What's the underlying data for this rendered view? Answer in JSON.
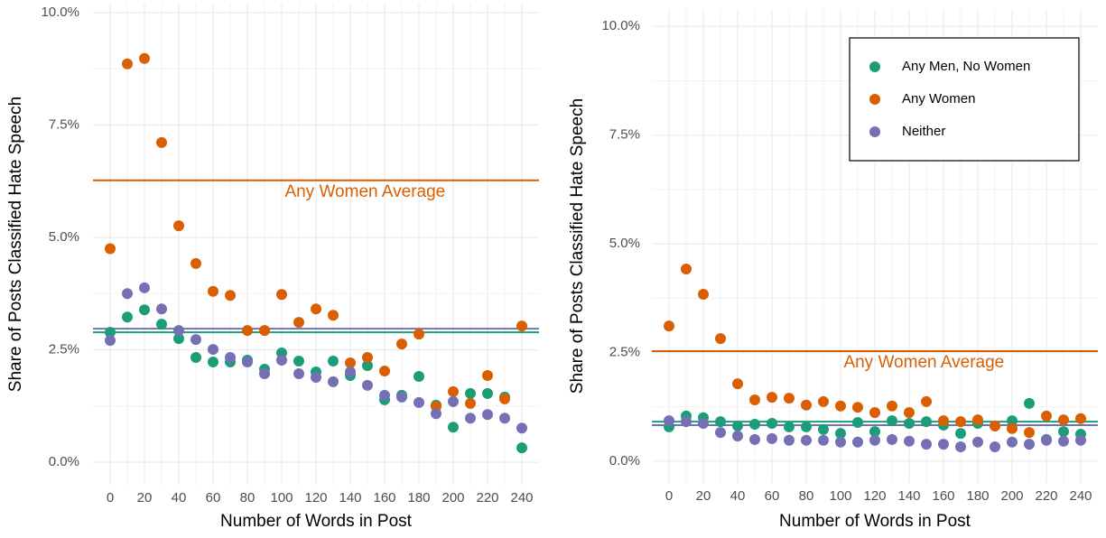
{
  "chart_data": [
    {
      "type": "scatter",
      "x_label": "Number of Words in Post",
      "y_label": "Share of Posts Classified Hate Speech",
      "x": [
        0,
        10,
        20,
        30,
        40,
        50,
        60,
        70,
        80,
        90,
        100,
        110,
        120,
        130,
        140,
        150,
        160,
        170,
        180,
        190,
        200,
        210,
        220,
        230,
        240
      ],
      "series": [
        {
          "color": "#1b9e77",
          "values": [
            2.89,
            3.23,
            3.39,
            3.07,
            2.75,
            2.33,
            2.23,
            2.23,
            2.27,
            2.07,
            2.43,
            2.25,
            2.01,
            2.25,
            1.93,
            2.15,
            1.39,
            1.49,
            1.91,
            1.27,
            0.78,
            1.53,
            1.53,
            1.45,
            0.32
          ]
        },
        {
          "color": "#d95f02",
          "values": [
            4.75,
            8.86,
            8.98,
            7.11,
            5.26,
            4.42,
            3.8,
            3.71,
            2.93,
            2.93,
            3.73,
            3.11,
            3.41,
            3.27,
            2.21,
            2.33,
            2.03,
            2.63,
            2.85,
            1.24,
            1.57,
            1.31,
            1.93,
            1.41,
            3.03
          ]
        },
        {
          "color": "#7570b3",
          "values": [
            2.71,
            3.75,
            3.88,
            3.41,
            2.93,
            2.73,
            2.51,
            2.33,
            2.23,
            1.97,
            2.27,
            1.97,
            1.89,
            1.79,
            2.01,
            1.71,
            1.49,
            1.45,
            1.33,
            1.08,
            1.35,
            0.98,
            1.06,
            0.98,
            0.76
          ]
        }
      ],
      "reference_lines": [
        {
          "name": "Any Women Average",
          "value": 6.27,
          "color": "#d95f02"
        },
        {
          "value": 2.89,
          "color": "#1b9e77"
        },
        {
          "value": 2.97,
          "color": "#7570b3"
        }
      ],
      "xlim": [
        -10,
        250
      ],
      "xticks": [
        0,
        20,
        40,
        60,
        80,
        100,
        120,
        140,
        160,
        180,
        200,
        220,
        240
      ],
      "ylim": [
        -0.5,
        10.2
      ],
      "yticks": [
        {
          "value": 0,
          "label": "0.0%"
        },
        {
          "value": 2.5,
          "label": "2.5%"
        },
        {
          "value": 5,
          "label": "5.0%"
        },
        {
          "value": 7.5,
          "label": "7.5%"
        },
        {
          "value": 10,
          "label": "10.0%"
        }
      ],
      "grid": true,
      "legend": false
    },
    {
      "type": "scatter",
      "x_label": "Number of Words in Post",
      "y_label": "Share of Posts Classified Hate Speech",
      "x": [
        0,
        10,
        20,
        30,
        40,
        50,
        60,
        70,
        80,
        90,
        100,
        110,
        120,
        130,
        140,
        150,
        160,
        170,
        180,
        190,
        200,
        210,
        220,
        230,
        240
      ],
      "series": [
        {
          "name": "Any Men, No Women",
          "color": "#1b9e77",
          "values": [
            0.79,
            1.04,
            1.0,
            0.91,
            0.81,
            0.85,
            0.87,
            0.79,
            0.79,
            0.73,
            0.64,
            0.89,
            0.68,
            0.93,
            0.87,
            0.91,
            0.83,
            0.64,
            0.87,
            0.81,
            0.93,
            1.33,
            0.5,
            0.68,
            0.62
          ]
        },
        {
          "name": "Any Women",
          "color": "#d95f02",
          "values": [
            3.11,
            4.42,
            3.84,
            2.82,
            1.78,
            1.41,
            1.47,
            1.45,
            1.29,
            1.37,
            1.27,
            1.24,
            1.12,
            1.27,
            1.12,
            1.37,
            0.93,
            0.91,
            0.95,
            0.81,
            0.75,
            0.66,
            1.04,
            0.95,
            0.98
          ]
        },
        {
          "name": "Neither",
          "color": "#7570b3",
          "values": [
            0.93,
            0.91,
            0.87,
            0.66,
            0.58,
            0.5,
            0.52,
            0.48,
            0.48,
            0.48,
            0.44,
            0.44,
            0.48,
            0.5,
            0.46,
            0.39,
            0.39,
            0.33,
            0.44,
            0.33,
            0.44,
            0.39,
            0.48,
            0.46,
            0.48
          ]
        }
      ],
      "reference_lines": [
        {
          "name": "Any Women Average",
          "value": 2.53,
          "color": "#d95f02"
        },
        {
          "value": 0.91,
          "color": "#1b9e77"
        },
        {
          "value": 0.83,
          "color": "#7570b3"
        }
      ],
      "xlim": [
        -10,
        250
      ],
      "xticks": [
        0,
        20,
        40,
        60,
        80,
        100,
        120,
        140,
        160,
        180,
        200,
        220,
        240
      ],
      "ylim": [
        -0.5,
        10.4
      ],
      "yticks": [
        {
          "value": 0,
          "label": "0.0%"
        },
        {
          "value": 2.5,
          "label": "2.5%"
        },
        {
          "value": 5,
          "label": "5.0%"
        },
        {
          "value": 7.5,
          "label": "7.5%"
        },
        {
          "value": 10,
          "label": "10.0%"
        }
      ],
      "grid": true,
      "legend": true,
      "legend_position": "top-right"
    }
  ]
}
